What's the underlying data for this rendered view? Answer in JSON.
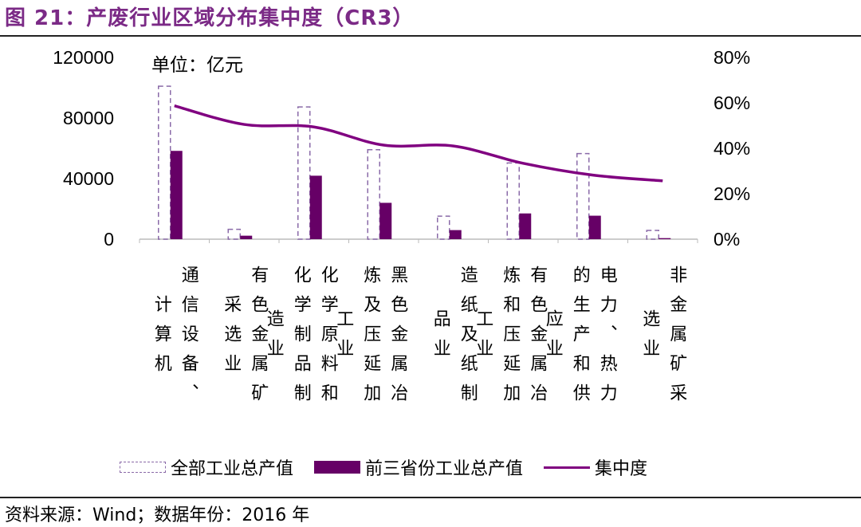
{
  "title": "图 21：产废行业区域分布集中度（CR3）",
  "unit_label": "单位：亿元",
  "source": "资料来源：Wind；数据年份：2016 年",
  "colors": {
    "title": "#7b2a86",
    "bar_solid": "#660066",
    "bar_dashed": "#8a6aa8",
    "line": "#800080"
  },
  "chart_data": {
    "type": "bar",
    "title": "",
    "categories": [
      "通信设备、计算机",
      "有色金属矿采选业",
      "化学原料和化学制品制造业",
      "黑色金属冶炼及压延加工业",
      "造纸及纸制品业",
      "有色金属冶炼和压延加工业",
      "电力、热力的生产和供应业",
      "非金属矿采选业"
    ],
    "series": [
      {
        "name": "全部工业总产值",
        "type": "bar",
        "style": "dashed-outline",
        "axis": "left",
        "values": [
          101000,
          6500,
          87300,
          59100,
          15200,
          50300,
          56500,
          5800
        ]
      },
      {
        "name": "前三省份工业总产值",
        "type": "bar",
        "style": "solid",
        "axis": "left",
        "values": [
          58300,
          2300,
          41900,
          24000,
          6000,
          17000,
          15500,
          700
        ]
      },
      {
        "name": "集中度",
        "type": "line",
        "style": "smooth",
        "axis": "right",
        "values": [
          58.7,
          50.5,
          49.4,
          41.4,
          41.0,
          33.4,
          28.2,
          25.7
        ]
      }
    ],
    "y_left": {
      "range": [
        0,
        120000
      ],
      "ticks": [
        "0",
        "40000",
        "80000",
        "120000"
      ]
    },
    "y_right": {
      "range": [
        0,
        80
      ],
      "ticks": [
        "0%",
        "20%",
        "40%",
        "60%",
        "80%"
      ]
    },
    "grid": false,
    "legend": "bottom"
  }
}
